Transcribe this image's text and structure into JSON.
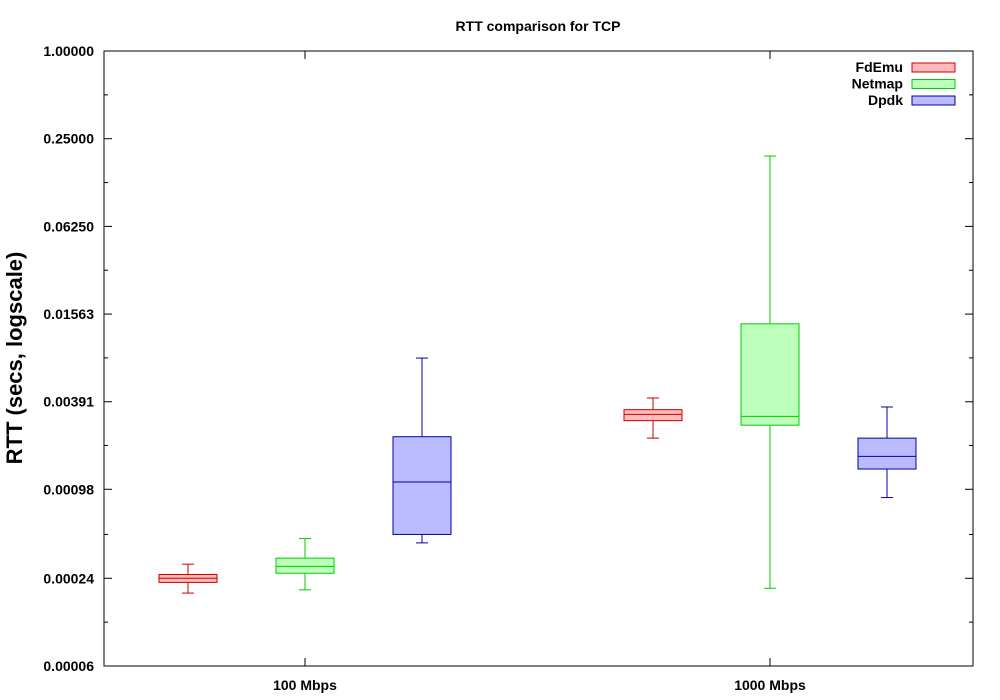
{
  "chart_data": {
    "type": "box",
    "title": "RTT comparison for TCP",
    "xlabel": "",
    "ylabel": "RTT (secs, logscale)",
    "yscale": "log2",
    "ylim": [
      6e-05,
      1.0
    ],
    "yticks": [
      6e-05,
      0.00024,
      0.00098,
      0.00391,
      0.01563,
      0.0625,
      0.25,
      1.0
    ],
    "ytick_labels": [
      "0.00006",
      "0.00024",
      "0.00098",
      "0.00391",
      "0.01563",
      "0.06250",
      "0.25000",
      "1.00000"
    ],
    "categories": [
      "100 Mbps",
      "1000 Mbps"
    ],
    "legend_position": "top-right",
    "grid": false,
    "series": [
      {
        "name": "FdEmu",
        "stroke": "#cc0000",
        "fill": "#ffbbbb",
        "boxes": [
          {
            "category": "100 Mbps",
            "min": 0.00019,
            "q1": 0.000225,
            "median": 0.00024,
            "q3": 0.000255,
            "max": 0.0003
          },
          {
            "category": "1000 Mbps",
            "min": 0.0022,
            "q1": 0.0029,
            "median": 0.0032,
            "q3": 0.00345,
            "max": 0.00415
          }
        ]
      },
      {
        "name": "Netmap",
        "stroke": "#00cc00",
        "fill": "#bbffbb",
        "boxes": [
          {
            "category": "100 Mbps",
            "min": 0.0002,
            "q1": 0.00026,
            "median": 0.00029,
            "q3": 0.00033,
            "max": 0.00045
          },
          {
            "category": "1000 Mbps",
            "min": 0.000205,
            "q1": 0.0027,
            "median": 0.0031,
            "q3": 0.0134,
            "max": 0.19
          }
        ]
      },
      {
        "name": "Dpdk",
        "stroke": "#0000aa",
        "fill": "#bbbbff",
        "boxes": [
          {
            "category": "100 Mbps",
            "min": 0.00042,
            "q1": 0.00048,
            "median": 0.0011,
            "q3": 0.00225,
            "max": 0.0078
          },
          {
            "category": "1000 Mbps",
            "min": 0.00086,
            "q1": 0.00135,
            "median": 0.00165,
            "q3": 0.0022,
            "max": 0.0036
          }
        ]
      }
    ]
  }
}
